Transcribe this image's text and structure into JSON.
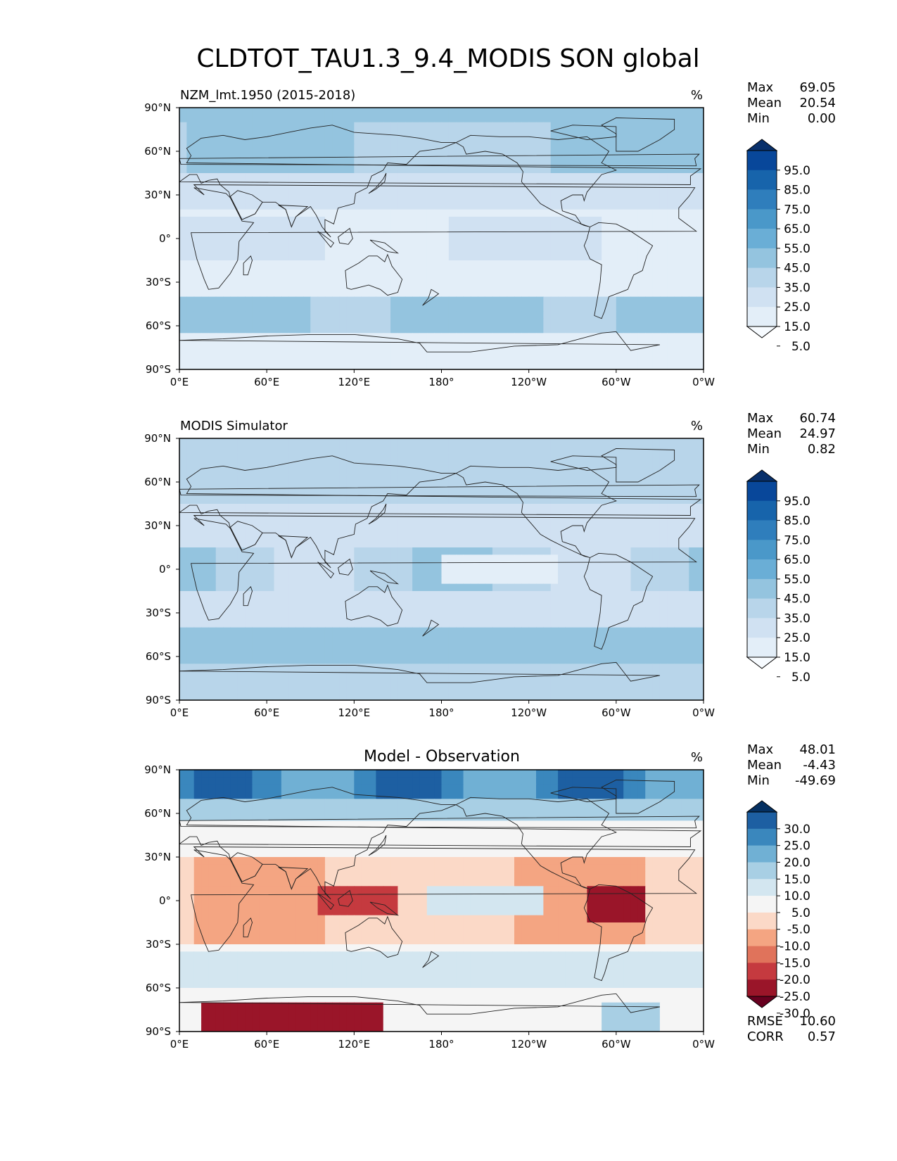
{
  "figure": {
    "title": "CLDTOT_TAU1.3_9.4_MODIS SON global"
  },
  "axes_ticks": {
    "lat": [
      "90°N",
      "60°N",
      "30°N",
      "0°",
      "30°S",
      "60°S",
      "90°S"
    ],
    "lon": [
      "0°E",
      "60°E",
      "120°E",
      "180°",
      "120°W",
      "60°W",
      "0°W"
    ]
  },
  "chart_data": [
    {
      "type": "heatmap",
      "panel": "test",
      "title": "NZM_lmt.1950 (2015-2018)",
      "units": "%",
      "stats": [
        {
          "label": "Max",
          "value": "69.05"
        },
        {
          "label": "Mean",
          "value": "20.54"
        },
        {
          "label": "Min",
          "value": "0.00"
        }
      ],
      "colorbar": {
        "levels": [
          "95.0",
          "85.0",
          "75.0",
          "65.0",
          "55.0",
          "45.0",
          "35.0",
          "25.0",
          "15.0",
          "5.0"
        ],
        "colors": [
          "#08306b",
          "#08479a",
          "#1764ab",
          "#2f7ebc",
          "#4a98c9",
          "#6aaed6",
          "#94c4df",
          "#b8d5ea",
          "#d0e1f2",
          "#e3eef8",
          "#f7fbff"
        ]
      },
      "mean_field": "blues"
    },
    {
      "type": "heatmap",
      "panel": "reference",
      "title": "MODIS Simulator",
      "units": "%",
      "stats": [
        {
          "label": "Max",
          "value": "60.74"
        },
        {
          "label": "Mean",
          "value": "24.97"
        },
        {
          "label": "Min",
          "value": "0.82"
        }
      ],
      "colorbar": {
        "levels": [
          "95.0",
          "85.0",
          "75.0",
          "65.0",
          "55.0",
          "45.0",
          "35.0",
          "25.0",
          "15.0",
          "5.0"
        ],
        "colors": [
          "#08306b",
          "#08479a",
          "#1764ab",
          "#2f7ebc",
          "#4a98c9",
          "#6aaed6",
          "#94c4df",
          "#b8d5ea",
          "#d0e1f2",
          "#e3eef8",
          "#f7fbff"
        ]
      },
      "mean_field": "blues"
    },
    {
      "type": "heatmap",
      "panel": "difference",
      "title": "Model - Observation",
      "units": "%",
      "stats": [
        {
          "label": "Max",
          "value": "48.01"
        },
        {
          "label": "Mean",
          "value": "-4.43"
        },
        {
          "label": "Min",
          "value": "-49.69"
        }
      ],
      "colorbar": {
        "levels": [
          "30.0",
          "25.0",
          "20.0",
          "15.0",
          "10.0",
          "5.0",
          "-5.0",
          "-10.0",
          "-15.0",
          "-20.0",
          "-25.0",
          "-30.0"
        ],
        "colors": [
          "#053061",
          "#1d5fa2",
          "#3a87bd",
          "#70b0d4",
          "#a8cfe4",
          "#d3e6f0",
          "#f5f5f5",
          "#fbd9c7",
          "#f4a582",
          "#e0735b",
          "#c53a3f",
          "#9a1529",
          "#67001f"
        ]
      },
      "extra_stats": [
        {
          "label": "RMSE",
          "value": "10.60"
        },
        {
          "label": "CORR",
          "value": "0.57"
        }
      ]
    }
  ]
}
